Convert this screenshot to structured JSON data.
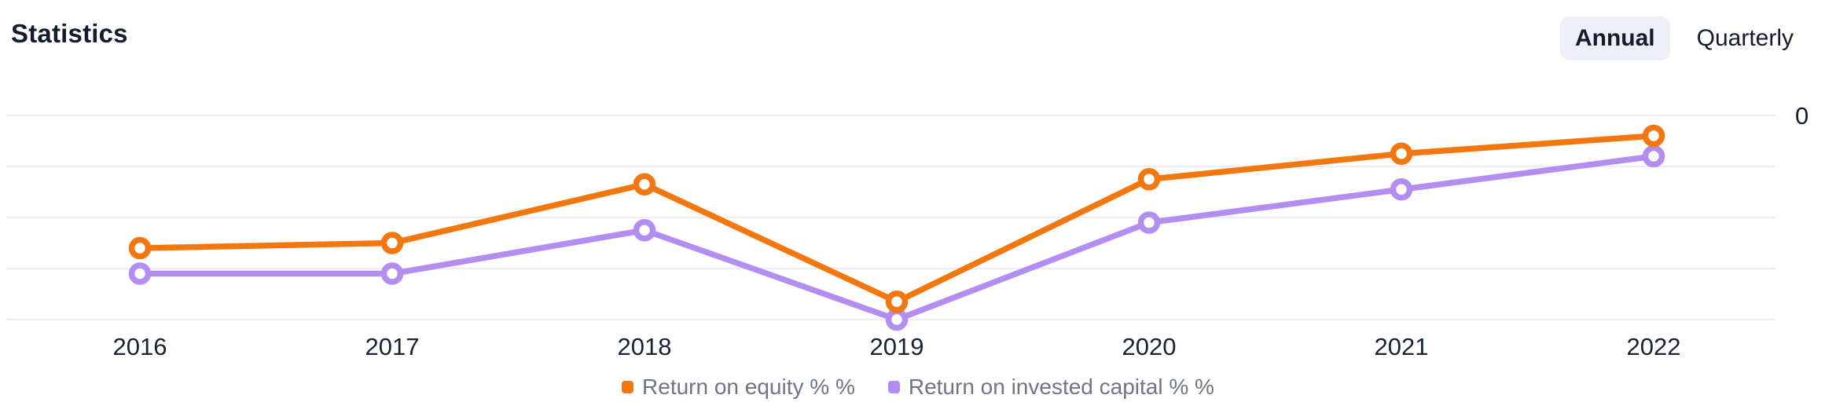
{
  "page": {
    "title": "Statistics"
  },
  "toggle": {
    "options": [
      "Annual",
      "Quarterly"
    ],
    "selected": "Annual"
  },
  "colors": {
    "series_roe": "#f2770e",
    "series_roic": "#b48df0",
    "gridline": "#e9edf6",
    "selected_pill_bg": "#edeff9",
    "dark_text": "#141b2e",
    "axis_text": "#1a2132",
    "legend_text": "#6e7585",
    "background": "#ffffff"
  },
  "chart_data": {
    "type": "line",
    "title": "Statistics",
    "categories": [
      "2016",
      "2017",
      "2018",
      "2019",
      "2020",
      "2021",
      "2022"
    ],
    "series": [
      {
        "name": "Return on equity % %",
        "color": "#f2770e",
        "values": [
          -2.6,
          -2.5,
          -1.35,
          -3.65,
          -1.25,
          -0.75,
          -0.4
        ]
      },
      {
        "name": "Return on invested capital % %",
        "color": "#b48df0",
        "values": [
          -3.1,
          -3.1,
          -2.25,
          -4.0,
          -2.1,
          -1.45,
          -0.8
        ]
      }
    ],
    "xlabel": "",
    "ylabel": "",
    "y_axis": {
      "visible_tick_labels": [
        "0"
      ],
      "tick_label_position": "top-right",
      "ylim": [
        -4,
        0
      ],
      "gridline_step": 1,
      "gridlines": true,
      "units": "gridline units; only the '0' tick is labeled in the chart"
    },
    "legend_position": "bottom-center",
    "marker": "open-circle"
  }
}
